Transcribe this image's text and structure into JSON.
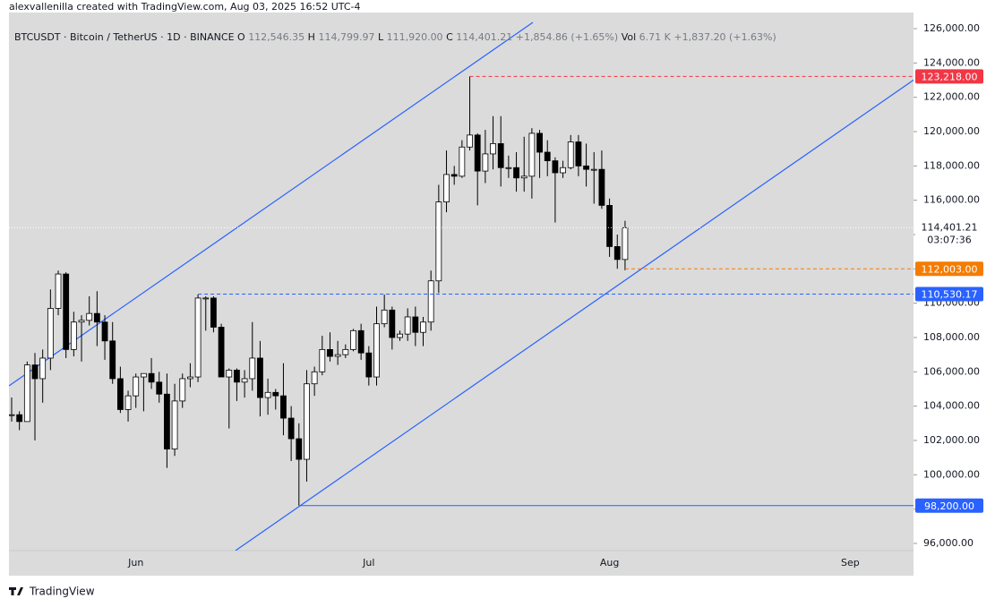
{
  "chart_data": {
    "type": "candlestick",
    "header": "alexvallenilla created with TradingView.com, Aug 03, 2025 16:52 UTC-4",
    "symbol": "BTCUSDT · Bitcoin / TetherUS · 1D · BINANCE",
    "legend_items": [
      {
        "key": "O",
        "text": "112,546.35"
      },
      {
        "key": "H",
        "text": "114,799.97"
      },
      {
        "key": "L",
        "text": "111,920.00"
      },
      {
        "key": "C",
        "text": "114,401.21"
      },
      {
        "key": "",
        "text": "+1,854.86 (+1.65%)"
      },
      {
        "key": "Vol",
        "text": "6.71 K"
      },
      {
        "key": "",
        "text": "+1,837.20 (+1.63%)"
      }
    ],
    "up_color": "#ffffff",
    "down_color": "#000000",
    "categories": [
      null,
      null,
      null,
      null,
      null,
      null,
      null,
      null,
      null,
      null,
      null,
      null,
      null,
      null,
      null,
      null,
      "Jun",
      null,
      null,
      null,
      null,
      null,
      null,
      null,
      null,
      null,
      null,
      null,
      null,
      null,
      null,
      null,
      null,
      null,
      null,
      null,
      null,
      null,
      null,
      null,
      null,
      null,
      null,
      null,
      null,
      null,
      "Jul",
      null,
      null,
      null,
      null,
      null,
      null,
      null,
      null,
      null,
      null,
      null,
      null,
      null,
      null,
      null,
      null,
      null,
      null,
      null,
      null,
      null,
      null,
      null,
      null,
      null,
      null,
      null,
      null,
      null,
      null,
      "Aug",
      null,
      null,
      null,
      null,
      null,
      null,
      null,
      null,
      null,
      null,
      null,
      null,
      null,
      null,
      null,
      null,
      null,
      null,
      null,
      null,
      null,
      null,
      null,
      null,
      null,
      null,
      null,
      null,
      null,
      null,
      "Sep"
    ],
    "open": [
      103500,
      103500,
      103100,
      106400,
      105600,
      106800,
      109700,
      111700,
      107300,
      108900,
      109000,
      109400,
      108900,
      107800,
      105600,
      103800,
      104600,
      105700,
      105900,
      105400,
      104700,
      101500,
      104300,
      105600,
      105700,
      110300,
      110300,
      108600,
      105700,
      106100,
      105400,
      105600,
      106800,
      104500,
      104800,
      104600,
      103300,
      102100,
      100900,
      105300,
      106000,
      107300,
      106900,
      107000,
      107300,
      108400,
      107100,
      105700,
      108800,
      109600,
      108000,
      108200,
      109200,
      108300,
      108900,
      111300,
      115900,
      117500,
      117400,
      119100,
      119800,
      117700,
      118700,
      119300,
      117900,
      117900,
      117300,
      117400,
      119900,
      118800,
      118300,
      117600,
      117900,
      119400,
      118000,
      117800,
      117800,
      115700,
      113300,
      112546.35,
      null,
      null,
      null,
      null,
      null,
      null,
      null,
      null,
      null,
      null,
      null,
      null,
      null,
      null,
      null,
      null,
      null,
      null,
      null,
      null,
      null,
      null,
      null,
      null,
      null,
      null,
      null,
      null,
      null
    ],
    "high": [
      104500,
      103700,
      106600,
      107100,
      107300,
      110800,
      111900,
      111800,
      109500,
      109300,
      110400,
      110700,
      109300,
      108900,
      106300,
      104900,
      105900,
      105900,
      106800,
      106000,
      105900,
      105300,
      105900,
      106500,
      110500,
      110400,
      110400,
      108800,
      106200,
      106200,
      106100,
      108900,
      107800,
      105600,
      105000,
      106500,
      104000,
      103000,
      106100,
      106300,
      108100,
      108300,
      107800,
      107600,
      108500,
      108800,
      107500,
      109800,
      110500,
      109800,
      108400,
      109700,
      109800,
      109200,
      111900,
      116900,
      118900,
      118000,
      119500,
      123218,
      119900,
      120100,
      120900,
      120900,
      118600,
      118800,
      119700,
      120200,
      120100,
      119500,
      118500,
      118300,
      119800,
      119800,
      119300,
      118800,
      118900,
      116100,
      114000,
      114799.97,
      null,
      null,
      null,
      null,
      null,
      null,
      null,
      null,
      null,
      null,
      null,
      null,
      null,
      null,
      null,
      null,
      null,
      null,
      null,
      null,
      null,
      null,
      null,
      null,
      null,
      null,
      null,
      null,
      null
    ],
    "low": [
      103100,
      102600,
      103100,
      102000,
      104200,
      106100,
      109300,
      106800,
      106900,
      106600,
      108700,
      107500,
      106700,
      105300,
      103600,
      103100,
      103900,
      103700,
      105000,
      104200,
      100400,
      101100,
      103900,
      105100,
      105400,
      108400,
      108300,
      105700,
      102700,
      104300,
      104500,
      104900,
      103400,
      103500,
      103800,
      102300,
      100800,
      98200,
      99600,
      104600,
      105800,
      106600,
      106400,
      106800,
      107200,
      106700,
      105200,
      105200,
      108600,
      107300,
      107800,
      107800,
      107500,
      107500,
      108400,
      110600,
      115300,
      116900,
      117300,
      118900,
      115700,
      117000,
      117800,
      116800,
      117300,
      116500,
      116500,
      116100,
      117300,
      117400,
      114700,
      117300,
      117800,
      117400,
      116800,
      115800,
      115500,
      112700,
      112003,
      111920,
      null,
      null,
      null,
      null,
      null,
      null,
      null,
      null,
      null,
      null,
      null,
      null,
      null,
      null,
      null,
      null,
      null,
      null,
      null,
      null,
      null,
      null,
      null,
      null,
      null,
      null,
      null,
      null,
      null
    ],
    "close": [
      103500,
      103100,
      106400,
      105600,
      106800,
      109700,
      111700,
      107300,
      108900,
      109000,
      109400,
      108900,
      107800,
      105600,
      103800,
      104600,
      105700,
      105900,
      105400,
      104700,
      101500,
      104300,
      105600,
      105700,
      110300,
      110300,
      108600,
      105700,
      106100,
      105400,
      105600,
      106800,
      104500,
      104800,
      104600,
      103300,
      102100,
      100900,
      105300,
      106000,
      107300,
      106900,
      107000,
      107300,
      108400,
      107100,
      105700,
      108800,
      109600,
      108000,
      108200,
      109200,
      108300,
      108900,
      111300,
      115900,
      117500,
      117400,
      119100,
      119800,
      117700,
      118700,
      119300,
      117900,
      117900,
      117300,
      117400,
      119900,
      118800,
      118300,
      117600,
      117900,
      119400,
      118000,
      117800,
      117800,
      115700,
      113300,
      112546.35,
      114401.21,
      null,
      null,
      null,
      null,
      null,
      null,
      null,
      null,
      null,
      null,
      null,
      null,
      null,
      null,
      null,
      null,
      null,
      null,
      null,
      null,
      null,
      null,
      null,
      null,
      null,
      null,
      null,
      null,
      null
    ],
    "ylim": [
      95580,
      126940
    ],
    "yticks": [
      {
        "value": 96000,
        "label": "96,000.00"
      },
      {
        "value": 98000,
        "label": "98,000.00"
      },
      {
        "value": 100000,
        "label": "100,000.00"
      },
      {
        "value": 102000,
        "label": "102,000.00"
      },
      {
        "value": 104000,
        "label": "104,000.00"
      },
      {
        "value": 106000,
        "label": "106,000.00"
      },
      {
        "value": 108000,
        "label": "108,000.00"
      },
      {
        "value": 110000,
        "label": "110,000.00"
      },
      {
        "value": 112000,
        "label": "112,000.00"
      },
      {
        "value": 114000,
        "label": "114,000.00"
      },
      {
        "value": 116000,
        "label": "116,000.00"
      },
      {
        "value": 118000,
        "label": "118,000.00"
      },
      {
        "value": 120000,
        "label": "120,000.00"
      },
      {
        "value": 122000,
        "label": "122,000.00"
      },
      {
        "value": 124000,
        "label": "124,000.00"
      },
      {
        "value": 126000,
        "label": "126,000.00"
      }
    ],
    "levels": [
      {
        "value": 123218,
        "label": "123,218.00",
        "color": "#f23645",
        "style": "dashed"
      },
      {
        "value": 112003,
        "label": "112,003.00",
        "color": "#f57c00",
        "style": "dashed"
      },
      {
        "value": 110530.17,
        "label": "110,530.17",
        "color": "#2962ff",
        "style": "dashed"
      },
      {
        "value": 98200,
        "label": "98,200.00",
        "color": "#2962ff",
        "style": "solid"
      }
    ],
    "last_price_label": "114,401.21",
    "countdown": "03:07:36",
    "footer": "TradingView"
  }
}
